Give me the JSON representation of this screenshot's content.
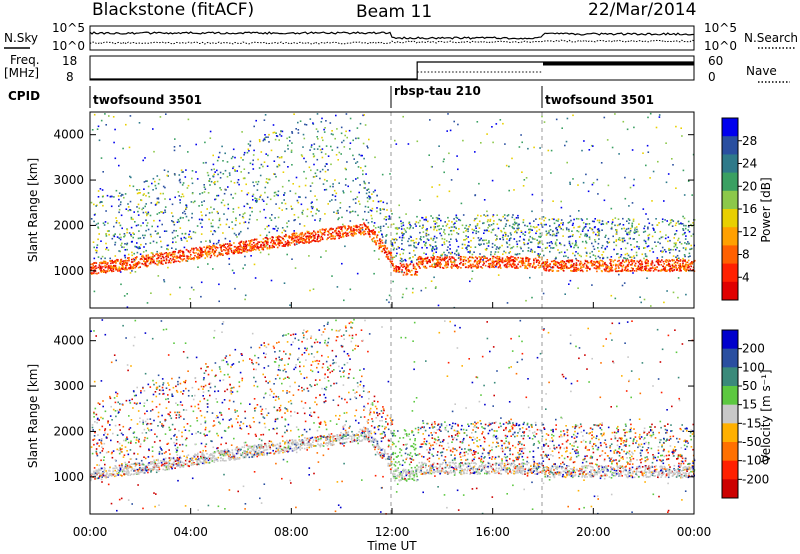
{
  "chart_data": [
    {
      "type": "line",
      "title_left": "Blackstone (fitACF)",
      "title_center": "Beam 11",
      "title_right": "22/Mar/2014",
      "panel": "noise",
      "left_label": "N.Sky",
      "right_label": "N.Search",
      "left_ticks": [
        "10^5",
        "10^0"
      ],
      "right_ticks": [
        "10^5",
        "10^0"
      ]
    },
    {
      "type": "line",
      "panel": "frequency",
      "left_label_1": "Freq.",
      "left_label_2": "[MHz]",
      "right_label": "Nave",
      "left_ticks": [
        "18",
        "8"
      ],
      "right_ticks": [
        "60",
        "0"
      ]
    },
    {
      "type": "table",
      "panel": "cpid",
      "label": "CPID",
      "segments": [
        {
          "name": "twofsound 3501",
          "start_h": 0,
          "end_h": 12
        },
        {
          "name": "rbsp-tau 210",
          "start_h": 12,
          "end_h": 18
        },
        {
          "name": "twofsound 3501",
          "start_h": 18,
          "end_h": 24
        }
      ]
    },
    {
      "type": "heatmap",
      "panel": "power",
      "ylabel": "Slant Range [km]",
      "ylim": [
        180,
        4500
      ],
      "yticks": [
        "1000",
        "2000",
        "3000",
        "4000"
      ],
      "colorbar_label": "Power [dB]",
      "colorbar_ticks": [
        "28",
        "24",
        "20",
        "16",
        "12",
        "8",
        "4"
      ],
      "colors": [
        "#0000ee",
        "#2a4fa0",
        "#2f7a8a",
        "#3aa062",
        "#8cc84a",
        "#e8d000",
        "#ffa000",
        "#ff6000",
        "#ff2000",
        "#e00000"
      ]
    },
    {
      "type": "heatmap",
      "panel": "velocity",
      "ylabel": "Slant Range [km]",
      "ylim": [
        180,
        4500
      ],
      "yticks": [
        "1000",
        "2000",
        "3000",
        "4000"
      ],
      "xlabel": "Time UT",
      "xticks": [
        "00:00",
        "04:00",
        "08:00",
        "12:00",
        "16:00",
        "20:00",
        "00:00"
      ],
      "xrange_h": [
        0,
        24
      ],
      "colorbar_label": "Velocity [m s⁻¹]",
      "colorbar_ticks": [
        "200",
        "100",
        "50",
        "15",
        "-15",
        "-50",
        "-100",
        "-200"
      ],
      "colors": [
        "#0000cc",
        "#2a4fa0",
        "#3a8a7a",
        "#5cc840",
        "#c8c8c8",
        "#ffb000",
        "#ff7000",
        "#ff2000",
        "#cc0000"
      ]
    }
  ]
}
